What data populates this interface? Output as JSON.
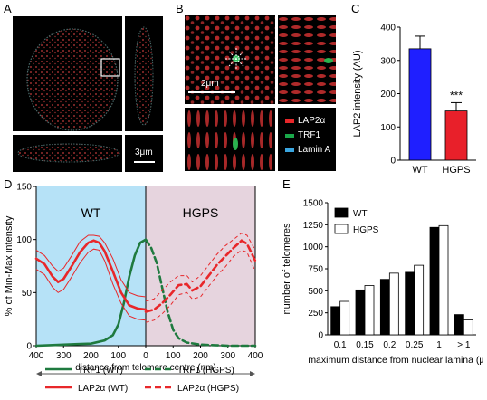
{
  "panels": {
    "a": {
      "letter": "A",
      "scalebar": "3μm"
    },
    "b": {
      "letter": "B",
      "scalebar": "2μm",
      "legend": [
        {
          "label": "LAP2α",
          "color": "#e8272a"
        },
        {
          "label": "TRF1",
          "color": "#1aa84a"
        },
        {
          "label": "Lamin A",
          "color": "#3aa6e0"
        }
      ]
    },
    "c": {
      "letter": "C"
    },
    "d": {
      "letter": "D"
    },
    "e": {
      "letter": "E"
    }
  },
  "chart_data": [
    {
      "id": "C",
      "type": "bar",
      "categories": [
        "WT",
        "HGPS"
      ],
      "values": [
        335,
        148
      ],
      "errors": [
        38,
        25
      ],
      "colors": [
        "#1f1fff",
        "#e8202a"
      ],
      "ylabel": "LAP2 intensity (AU)",
      "ylim": [
        0,
        400
      ],
      "yticks": [
        0,
        100,
        200,
        300,
        400
      ],
      "annotation": "***"
    },
    {
      "id": "D",
      "type": "line",
      "xlabel": "distance from telomere centre (nm)",
      "ylabel": "% of Min-Max intensity",
      "ylim": [
        0,
        150
      ],
      "yticks": [
        0,
        50,
        100,
        150
      ],
      "xticks": [
        "400",
        "300",
        "200",
        "100",
        "0",
        "100",
        "200",
        "300",
        "400"
      ],
      "region_labels": [
        "WT",
        "HGPS"
      ],
      "region_colors": [
        "#b6e2f7",
        "#e6d4de"
      ],
      "legend": [
        "TRF1 (WT)",
        "TRF1 (HGPS)",
        "LAP2α (WT)",
        "LAP2α (HGPS)"
      ],
      "series": [
        {
          "name": "TRF1 (WT)",
          "style": "solid",
          "color": "#1f7a3f",
          "x": [
            -400,
            -350,
            -300,
            -250,
            -200,
            -150,
            -120,
            -100,
            -80,
            -60,
            -40,
            -20,
            0
          ],
          "y": [
            0,
            0.5,
            1,
            1.5,
            2,
            5,
            10,
            20,
            40,
            65,
            85,
            97,
            100
          ]
        },
        {
          "name": "TRF1 (HGPS)",
          "style": "dashed",
          "color": "#1f7a3f",
          "x": [
            0,
            20,
            40,
            60,
            80,
            100,
            120,
            150,
            200,
            250,
            300,
            350,
            400
          ],
          "y": [
            100,
            92,
            78,
            55,
            32,
            15,
            7,
            3,
            1,
            0.5,
            0,
            0,
            0
          ]
        },
        {
          "name": "LAP2α (WT)",
          "style": "solid",
          "color": "#e8272a",
          "x": [
            -400,
            -370,
            -340,
            -320,
            -300,
            -270,
            -240,
            -210,
            -190,
            -170,
            -150,
            -120,
            -90,
            -60,
            -30,
            0
          ],
          "y": [
            82,
            77,
            65,
            60,
            63,
            75,
            88,
            97,
            99,
            97,
            89,
            70,
            50,
            38,
            35,
            34
          ],
          "ci_upper": [
            90,
            85,
            75,
            70,
            73,
            85,
            98,
            104,
            104,
            103,
            97,
            82,
            62,
            50,
            47,
            46
          ],
          "ci_lower": [
            72,
            67,
            55,
            50,
            53,
            65,
            78,
            88,
            91,
            90,
            80,
            58,
            40,
            28,
            25,
            24
          ]
        },
        {
          "name": "LAP2α (HGPS)",
          "style": "dashed",
          "color": "#e8272a",
          "x": [
            0,
            30,
            60,
            90,
            120,
            150,
            170,
            200,
            230,
            260,
            290,
            320,
            350,
            370,
            400
          ],
          "y": [
            32,
            34,
            40,
            48,
            57,
            58,
            52,
            56,
            66,
            76,
            84,
            92,
            99,
            96,
            80
          ],
          "ci_upper": [
            42,
            44,
            52,
            60,
            66,
            66,
            60,
            66,
            76,
            86,
            94,
            100,
            106,
            104,
            90
          ],
          "ci_lower": [
            22,
            24,
            30,
            38,
            48,
            50,
            44,
            46,
            56,
            66,
            74,
            84,
            90,
            88,
            70
          ]
        }
      ]
    },
    {
      "id": "E",
      "type": "bar",
      "categories": [
        "0.1",
        "0.15",
        "0.2",
        "0.25",
        "1",
        "> 1"
      ],
      "xlabel": "maximum distance from nuclear lamina (μm)",
      "ylabel": "number of telomeres",
      "ylim": [
        0,
        1500
      ],
      "yticks": [
        0,
        250,
        500,
        750,
        1000,
        1250,
        1500
      ],
      "series": [
        {
          "name": "WT",
          "color": "#000000",
          "values": [
            320,
            510,
            630,
            710,
            1220,
            230
          ]
        },
        {
          "name": "HGPS",
          "color": "#ffffff",
          "values": [
            380,
            560,
            700,
            790,
            1240,
            170
          ]
        }
      ]
    }
  ]
}
